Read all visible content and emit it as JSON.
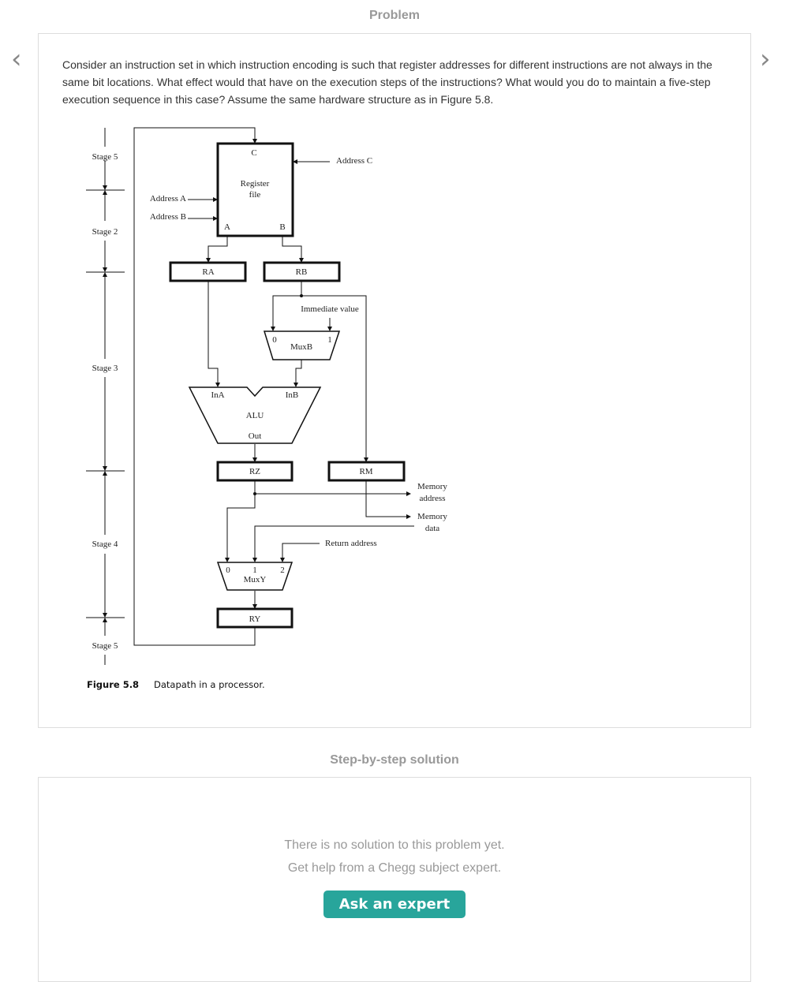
{
  "header": {
    "title": "Problem",
    "prev_icon": "chevron-left-icon",
    "next_icon": "chevron-right-icon"
  },
  "problem": {
    "text": "Consider an instruction set in which instruction encoding is such that register addresses for different instructions are not always in the same bit locations. What effect would that have on the execution steps of the instructions? What would you do to maintain a five-step execution sequence in this case? Assume the same hardware structure as in Figure 5.8.",
    "figure": {
      "stages": [
        "Stage 5",
        "Stage 2",
        "Stage 3",
        "Stage 4",
        "Stage 5"
      ],
      "register_file": {
        "title1": "Register",
        "title2": "file",
        "port_c": "C",
        "port_a": "A",
        "port_b": "B"
      },
      "address_a": "Address A",
      "address_b": "Address B",
      "address_c": "Address C",
      "ra": "RA",
      "rb": "RB",
      "rz": "RZ",
      "rm": "RM",
      "ry": "RY",
      "immediate": "Immediate value",
      "muxb": {
        "label": "MuxB",
        "in0": "0",
        "in1": "1"
      },
      "alu": {
        "label": "ALU",
        "ina": "InA",
        "inb": "InB",
        "out": "Out"
      },
      "mem_address": [
        "Memory",
        "address"
      ],
      "mem_data": [
        "Memory",
        "data"
      ],
      "return_address": "Return address",
      "muxy": {
        "label": "MuxY",
        "in0": "0",
        "in1": "1",
        "in2": "2"
      },
      "caption_num": "Figure 5.8",
      "caption_text": "Datapath in a processor."
    }
  },
  "solution": {
    "title": "Step-by-step solution",
    "line1": "There is no solution to this problem yet.",
    "line2": "Get help from a Chegg subject expert.",
    "button": "Ask an expert",
    "button_color": "#28a59b"
  }
}
